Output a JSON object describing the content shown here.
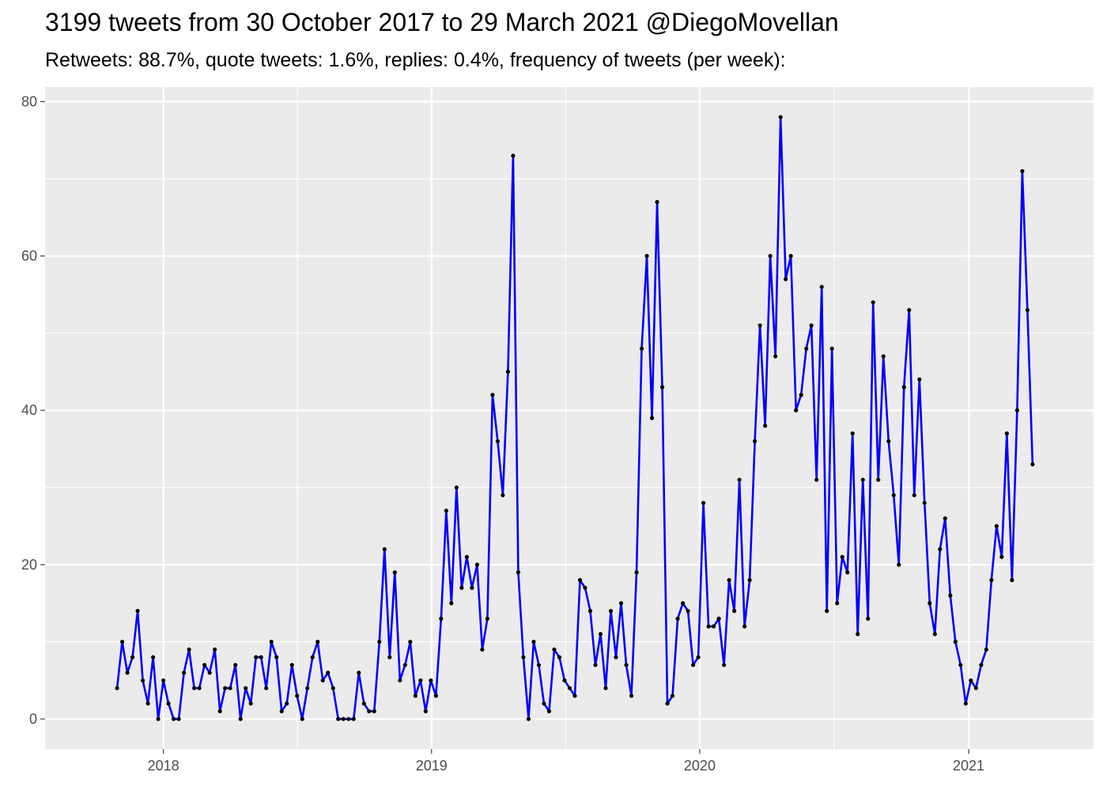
{
  "title": "3199 tweets from 30 October 2017 to 29 March 2021 @DiegoMovellan",
  "subtitle": "Retweets: 88.7%, quote tweets: 1.6%, replies: 0.4%, frequency of tweets (per week):",
  "chart_data": {
    "type": "line",
    "title": "3199 tweets from 30 October 2017 to 29 March 2021 @DiegoMovellan",
    "subtitle": "Retweets: 88.7%, quote tweets: 1.6%, replies: 0.4%, frequency of tweets (per week):",
    "xlabel": "",
    "ylabel": "",
    "x_axis_type": "date",
    "x_start_date": "2017-10-30",
    "x_step_days": 7,
    "x_ticks": [
      "2018",
      "2019",
      "2020",
      "2021"
    ],
    "y_ticks": [
      0,
      20,
      40,
      60,
      80
    ],
    "ylim": [
      -3.9,
      81.9
    ],
    "xlim": [
      "2017-07-24",
      "2021-06-20"
    ],
    "grid": true,
    "legend": "none",
    "colors": {
      "line": "#0000ff",
      "point": "#000000",
      "panel": "#ebebeb",
      "grid": "#ffffff"
    },
    "series": [
      {
        "values": [
          4,
          10,
          6,
          8,
          14,
          5,
          2,
          8,
          0,
          5,
          2,
          0,
          0,
          6,
          9,
          4,
          4,
          7,
          6,
          9,
          1,
          4,
          4,
          7,
          0,
          4,
          2,
          8,
          8,
          4,
          10,
          8,
          1,
          2,
          7,
          3,
          0,
          4,
          8,
          10,
          5,
          6,
          4,
          0,
          0,
          0,
          0,
          6,
          2,
          1,
          1,
          10,
          22,
          8,
          19,
          5,
          7,
          10,
          3,
          5,
          1,
          5,
          3,
          13,
          27,
          15,
          30,
          17,
          21,
          17,
          20,
          9,
          13,
          42,
          36,
          29,
          45,
          73,
          19,
          8,
          0,
          10,
          7,
          2,
          1,
          9,
          8,
          5,
          4,
          3,
          18,
          17,
          14,
          7,
          11,
          4,
          14,
          8,
          15,
          7,
          3,
          19,
          48,
          60,
          39,
          67,
          43,
          2,
          3,
          13,
          15,
          14,
          7,
          8,
          28,
          12,
          12,
          13,
          7,
          18,
          14,
          31,
          12,
          18,
          36,
          51,
          38,
          60,
          47,
          78,
          57,
          60,
          40,
          42,
          48,
          51,
          31,
          56,
          14,
          48,
          15,
          21,
          19,
          37,
          11,
          31,
          13,
          54,
          31,
          47,
          36,
          29,
          20,
          43,
          53,
          29,
          44,
          28,
          15,
          11,
          22,
          26,
          16,
          10,
          7,
          2,
          5,
          4,
          7,
          9,
          18,
          25,
          21,
          37,
          18,
          40,
          71,
          53,
          33
        ]
      }
    ]
  }
}
